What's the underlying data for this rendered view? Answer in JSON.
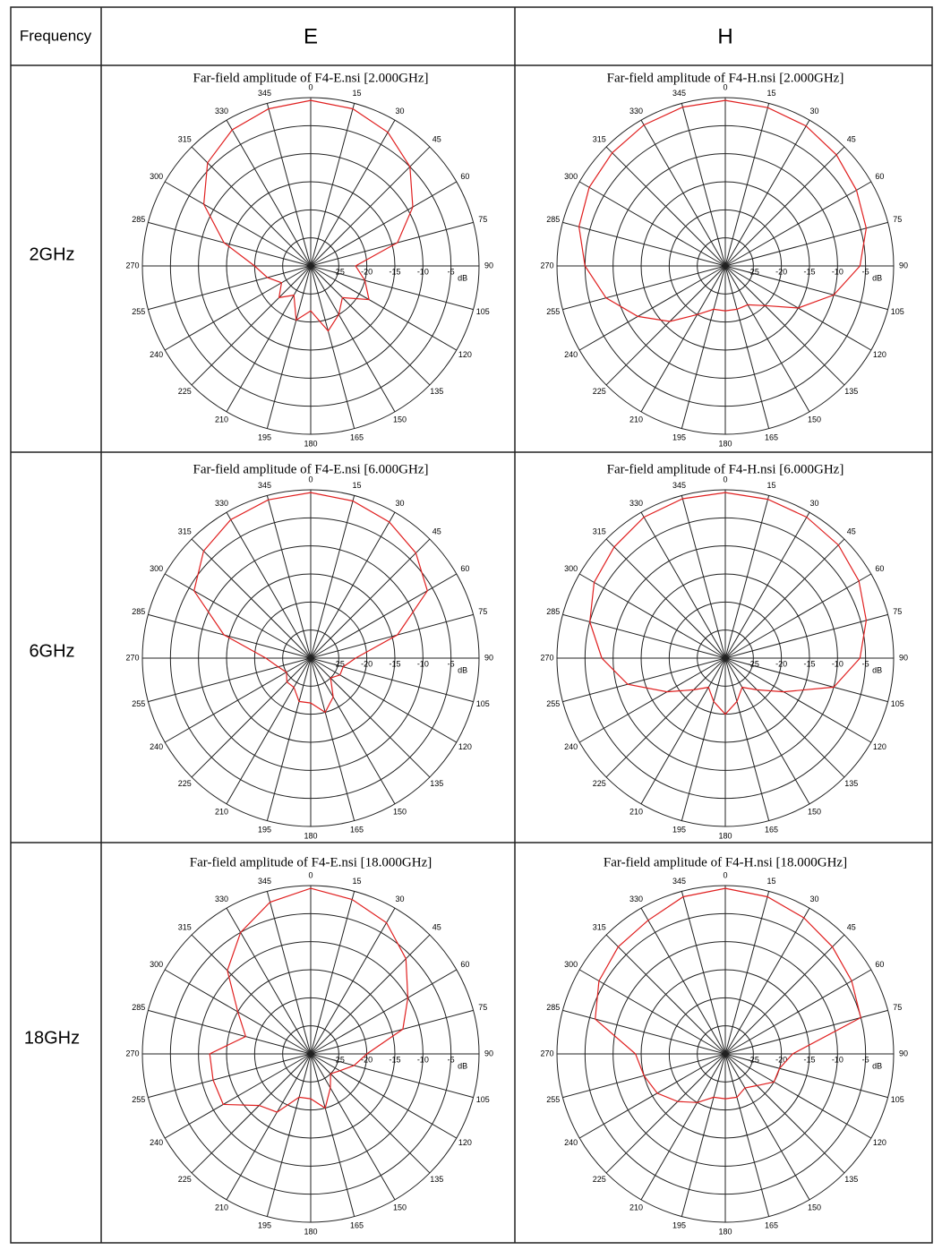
{
  "table": {
    "header": [
      "Frequency",
      "E",
      "H"
    ],
    "rows": [
      "2GHz",
      "6GHz",
      "18GHz"
    ]
  },
  "chart_data": [
    {
      "type": "polar",
      "title": "Far-field amplitude of F4-E.nsi [2.000GHz]",
      "runit": "dB",
      "rlim": [
        -30,
        0
      ],
      "rticks": [
        -25,
        -20,
        -15,
        -10,
        -5
      ],
      "thetaticks": [
        0,
        15,
        30,
        45,
        60,
        75,
        90,
        105,
        120,
        135,
        150,
        165,
        180,
        195,
        210,
        225,
        240,
        255,
        270,
        285,
        300,
        315,
        330,
        345
      ],
      "theta": [
        0,
        15,
        30,
        45,
        60,
        75,
        90,
        105,
        120,
        135,
        150,
        165,
        180,
        195,
        210,
        225,
        240,
        255,
        270,
        285,
        300,
        315,
        330,
        345
      ],
      "series": [
        {
          "color": "#e02020",
          "values": [
            -0.5,
            -1,
            -2.5,
            -5,
            -9,
            -14,
            -22,
            -20,
            -18,
            -22,
            -20,
            -18,
            -22,
            -20,
            -24,
            -22,
            -24,
            -22,
            -20,
            -14,
            -8,
            -4,
            -2,
            -1
          ]
        }
      ]
    },
    {
      "type": "polar",
      "title": "Far-field amplitude of F4-H.nsi [2.000GHz]",
      "runit": "dB",
      "rlim": [
        -30,
        0
      ],
      "rticks": [
        -25,
        -20,
        -15,
        -10,
        -5
      ],
      "thetaticks": [
        0,
        15,
        30,
        45,
        60,
        75,
        90,
        105,
        120,
        135,
        150,
        165,
        180,
        195,
        210,
        225,
        240,
        255,
        270,
        285,
        300,
        315,
        330,
        345
      ],
      "theta": [
        0,
        15,
        30,
        45,
        60,
        75,
        90,
        105,
        120,
        135,
        150,
        165,
        180,
        195,
        210,
        225,
        240,
        255,
        270,
        285,
        300,
        315,
        330,
        345
      ],
      "series": [
        {
          "color": "#e02020",
          "values": [
            -0.5,
            -0.8,
            -1.2,
            -2,
            -3,
            -4,
            -6,
            -10,
            -15,
            -20,
            -22,
            -22,
            -22,
            -22,
            -20,
            -16,
            -12,
            -8,
            -5,
            -3,
            -2,
            -1.5,
            -1,
            -0.7
          ]
        }
      ]
    },
    {
      "type": "polar",
      "title": "Far-field amplitude of F4-E.nsi [6.000GHz]",
      "runit": "dB",
      "rlim": [
        -30,
        0
      ],
      "rticks": [
        -25,
        -20,
        -15,
        -10,
        -5
      ],
      "thetaticks": [
        0,
        15,
        30,
        45,
        60,
        75,
        90,
        105,
        120,
        135,
        150,
        165,
        180,
        195,
        210,
        225,
        240,
        255,
        270,
        285,
        300,
        315,
        330,
        345
      ],
      "theta": [
        0,
        15,
        30,
        45,
        60,
        75,
        90,
        105,
        120,
        135,
        150,
        165,
        180,
        195,
        210,
        225,
        240,
        255,
        270,
        285,
        300,
        315,
        330,
        345
      ],
      "series": [
        {
          "color": "#e02020",
          "values": [
            -0.5,
            -1,
            -2,
            -3.5,
            -6,
            -14,
            -22,
            -24,
            -24,
            -25,
            -22,
            -20,
            -22,
            -22,
            -24,
            -24,
            -25,
            -24,
            -22,
            -14,
            -6,
            -3,
            -1.5,
            -0.8
          ]
        }
      ]
    },
    {
      "type": "polar",
      "title": "Far-field amplitude of F4-H.nsi [6.000GHz]",
      "runit": "dB",
      "rlim": [
        -30,
        0
      ],
      "rticks": [
        -25,
        -20,
        -15,
        -10,
        -5
      ],
      "thetaticks": [
        0,
        15,
        30,
        45,
        60,
        75,
        90,
        105,
        120,
        135,
        150,
        165,
        180,
        195,
        210,
        225,
        240,
        255,
        270,
        285,
        300,
        315,
        330,
        345
      ],
      "theta": [
        0,
        15,
        30,
        45,
        60,
        75,
        90,
        105,
        120,
        135,
        150,
        165,
        180,
        195,
        210,
        225,
        240,
        255,
        270,
        285,
        300,
        315,
        330,
        345
      ],
      "series": [
        {
          "color": "#e02020",
          "values": [
            -0.5,
            -0.7,
            -1,
            -1.5,
            -2.5,
            -4,
            -6,
            -10,
            -18,
            -22,
            -24,
            -22,
            -20,
            -22,
            -24,
            -22,
            -18,
            -12,
            -8,
            -5,
            -3,
            -2,
            -1,
            -0.6
          ]
        }
      ]
    },
    {
      "type": "polar",
      "title": "Far-field amplitude of F4-E.nsi [18.000GHz]",
      "runit": "dB",
      "rlim": [
        -30,
        0
      ],
      "rticks": [
        -25,
        -20,
        -15,
        -10,
        -5
      ],
      "thetaticks": [
        0,
        15,
        30,
        45,
        60,
        75,
        90,
        105,
        120,
        135,
        150,
        165,
        180,
        195,
        210,
        225,
        240,
        255,
        270,
        285,
        300,
        315,
        330,
        345
      ],
      "theta": [
        0,
        15,
        30,
        45,
        60,
        75,
        90,
        105,
        120,
        135,
        150,
        165,
        180,
        195,
        210,
        225,
        240,
        255,
        270,
        285,
        300,
        315,
        330,
        345
      ],
      "series": [
        {
          "color": "#e02020",
          "values": [
            -0.5,
            -1.5,
            -3,
            -6,
            -10,
            -13,
            -20,
            -22,
            -24,
            -25,
            -23,
            -20,
            -22,
            -22,
            -18,
            -17,
            -12,
            -12,
            -12,
            -18,
            -15,
            -9,
            -5,
            -2
          ]
        }
      ]
    },
    {
      "type": "polar",
      "title": "Far-field amplitude of F4-H.nsi [18.000GHz]",
      "runit": "dB",
      "rlim": [
        -30,
        0
      ],
      "rticks": [
        -25,
        -20,
        -15,
        -10,
        -5
      ],
      "thetaticks": [
        0,
        15,
        30,
        45,
        60,
        75,
        90,
        105,
        120,
        135,
        150,
        165,
        180,
        195,
        210,
        225,
        240,
        255,
        270,
        285,
        300,
        315,
        330,
        345
      ],
      "theta": [
        0,
        15,
        30,
        45,
        60,
        75,
        90,
        105,
        120,
        135,
        150,
        165,
        180,
        195,
        210,
        225,
        240,
        255,
        270,
        285,
        300,
        315,
        330,
        345
      ],
      "series": [
        {
          "color": "#e02020",
          "values": [
            -0.5,
            -1,
            -2,
            -3,
            -4,
            -5,
            -18,
            -20,
            -20,
            -22,
            -23,
            -22,
            -22,
            -22,
            -20,
            -18,
            -16,
            -15,
            -14,
            -6,
            -4,
            -3,
            -2.5,
            -1
          ]
        }
      ]
    }
  ]
}
